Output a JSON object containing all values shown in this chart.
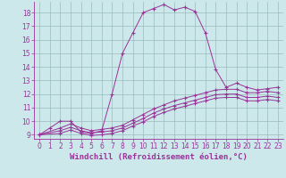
{
  "bg_color": "#cce8ea",
  "line_color": "#993399",
  "grid_color": "#99bbbb",
  "xlabel": "Windchill (Refroidissement éolien,°C)",
  "xlabel_fontsize": 6.5,
  "tick_fontsize": 5.5,
  "xlim": [
    -0.5,
    23.5
  ],
  "ylim": [
    8.7,
    18.8
  ],
  "yticks": [
    9,
    10,
    11,
    12,
    13,
    14,
    15,
    16,
    17,
    18
  ],
  "xticks": [
    0,
    1,
    2,
    3,
    4,
    5,
    6,
    7,
    8,
    9,
    10,
    11,
    12,
    13,
    14,
    15,
    16,
    17,
    18,
    19,
    20,
    21,
    22,
    23
  ],
  "curve1_x": [
    0,
    1,
    2,
    3,
    4,
    5,
    6,
    7,
    8,
    9,
    10,
    11,
    12,
    13,
    14,
    15,
    16,
    17,
    18,
    19,
    20,
    21,
    22,
    23
  ],
  "curve1_y": [
    9.0,
    9.5,
    10.0,
    10.0,
    9.2,
    9.1,
    9.3,
    12.0,
    15.0,
    16.5,
    18.0,
    18.3,
    18.6,
    18.2,
    18.4,
    18.1,
    16.5,
    13.8,
    12.5,
    12.8,
    12.5,
    12.3,
    12.4,
    12.5
  ],
  "curve2_x": [
    0,
    2,
    3,
    4,
    5,
    6,
    7,
    8,
    9,
    10,
    11,
    12,
    13,
    14,
    15,
    16,
    17,
    18,
    19,
    20,
    21,
    22,
    23
  ],
  "curve2_y": [
    9.0,
    9.5,
    9.8,
    9.5,
    9.3,
    9.4,
    9.5,
    9.7,
    10.1,
    10.5,
    10.9,
    11.2,
    11.5,
    11.7,
    11.9,
    12.1,
    12.3,
    12.35,
    12.35,
    12.1,
    12.1,
    12.2,
    12.1
  ],
  "curve3_x": [
    0,
    2,
    3,
    4,
    5,
    6,
    7,
    8,
    9,
    10,
    11,
    12,
    13,
    14,
    15,
    16,
    17,
    18,
    19,
    20,
    21,
    22,
    23
  ],
  "curve3_y": [
    9.0,
    9.3,
    9.55,
    9.3,
    9.15,
    9.2,
    9.3,
    9.5,
    9.85,
    10.2,
    10.6,
    10.9,
    11.15,
    11.35,
    11.55,
    11.75,
    11.95,
    12.0,
    12.0,
    11.75,
    11.75,
    11.85,
    11.75
  ],
  "curve4_x": [
    0,
    2,
    3,
    4,
    5,
    6,
    7,
    8,
    9,
    10,
    11,
    12,
    13,
    14,
    15,
    16,
    17,
    18,
    19,
    20,
    21,
    22,
    23
  ],
  "curve4_y": [
    9.0,
    9.1,
    9.35,
    9.1,
    8.95,
    9.0,
    9.1,
    9.3,
    9.65,
    9.95,
    10.35,
    10.65,
    10.9,
    11.1,
    11.3,
    11.5,
    11.7,
    11.75,
    11.75,
    11.5,
    11.5,
    11.6,
    11.5
  ]
}
